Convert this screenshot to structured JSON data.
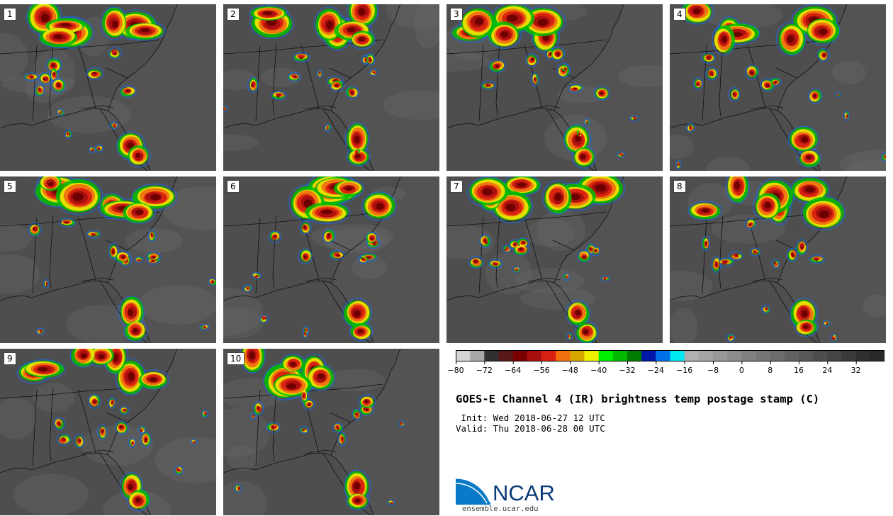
{
  "panels": [
    {
      "label": "1"
    },
    {
      "label": "2"
    },
    {
      "label": "3"
    },
    {
      "label": "4"
    },
    {
      "label": "5"
    },
    {
      "label": "6"
    },
    {
      "label": "7"
    },
    {
      "label": "8"
    },
    {
      "label": "9"
    },
    {
      "label": "10"
    }
  ],
  "colorbar": {
    "ticks": [
      "−80",
      "−72",
      "−64",
      "−56",
      "−48",
      "−40",
      "−32",
      "−24",
      "−16",
      "−8",
      "0",
      "8",
      "16",
      "24",
      "32"
    ],
    "colors": [
      "#d4d4d4",
      "#a8a8a8",
      "#303030",
      "#581818",
      "#7a0000",
      "#a81010",
      "#d82010",
      "#f07010",
      "#d8a800",
      "#f0f000",
      "#00ee00",
      "#00b800",
      "#007c00",
      "#0018a8",
      "#0070e8",
      "#00e8f0",
      "#b0b0b0",
      "#a4a4a4",
      "#989898",
      "#8c8c8c",
      "#808080",
      "#767676",
      "#6c6c6c",
      "#626262",
      "#585858",
      "#4e4e4e",
      "#444444",
      "#3a3a3a",
      "#303030",
      "#282828"
    ]
  },
  "title": "GOES-E Channel 4 (IR) brightness temp postage stamp (C)",
  "init": " Init: Wed 2018-06-27 12 UTC",
  "valid": "Valid: Thu 2018-06-28 00 UTC",
  "logo": {
    "name": "NCAR",
    "url": "ensemble.ucar.edu"
  }
}
